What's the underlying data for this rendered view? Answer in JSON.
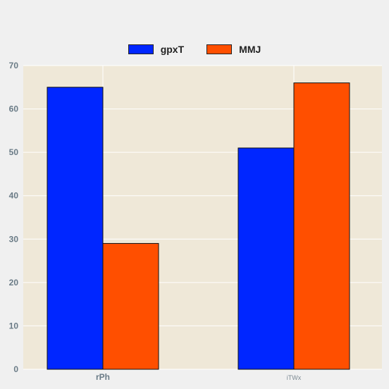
{
  "chart_data": {
    "type": "bar",
    "categories": [
      "rPh",
      "iTWx"
    ],
    "series": [
      {
        "name": "gpxT",
        "values": [
          65,
          51
        ],
        "color": "#0026ff"
      },
      {
        "name": "MMJ",
        "values": [
          29,
          66
        ],
        "color": "#ff4f00"
      }
    ],
    "ylim": [
      0,
      70
    ],
    "yticks": [
      0,
      10,
      20,
      30,
      40,
      50,
      60,
      70
    ],
    "grid": true,
    "legend_position": "top-center",
    "plot_background": "#efe8d8",
    "page_background": "#f0f0f0"
  }
}
